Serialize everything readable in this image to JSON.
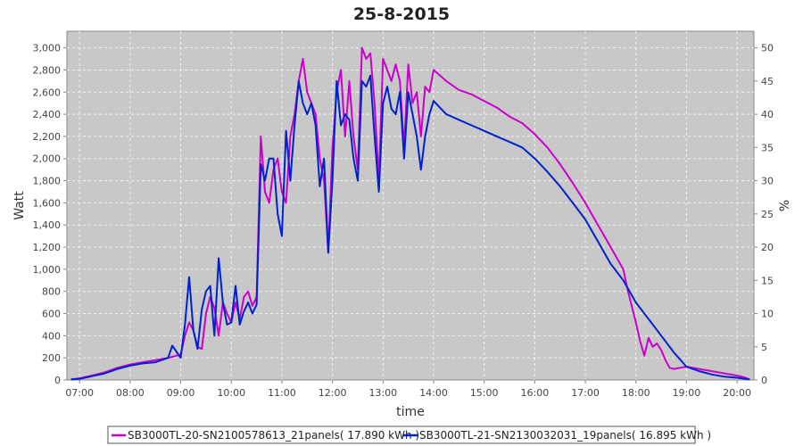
{
  "chart_data": {
    "type": "line",
    "title": "25-8-2015",
    "xlabel": "time",
    "ylabel": "Watt",
    "y2label": "%",
    "x_ticks": [
      "07:00",
      "08:00",
      "09:00",
      "10:00",
      "11:00",
      "12:00",
      "13:00",
      "14:00",
      "15:00",
      "16:00",
      "17:00",
      "18:00",
      "19:00",
      "20:00"
    ],
    "xlim": [
      "06:45",
      "20:20"
    ],
    "ylim": [
      0,
      3150
    ],
    "y_ticks": [
      0,
      200,
      400,
      600,
      800,
      1000,
      1200,
      1400,
      1600,
      1800,
      2000,
      2200,
      2400,
      2600,
      2800,
      3000
    ],
    "y_tick_labels": [
      "0",
      "200",
      "400",
      "600",
      "800",
      "1,000",
      "1,200",
      "1,400",
      "1,600",
      "1,800",
      "2,000",
      "2,200",
      "2,400",
      "2,600",
      "2,800",
      "3,000"
    ],
    "y2lim": [
      0,
      52.5
    ],
    "y2_ticks": [
      0,
      5,
      10,
      15,
      20,
      25,
      30,
      35,
      40,
      45,
      50
    ],
    "y2_tick_labels": [
      "0",
      "5",
      "10",
      "15",
      "20",
      "25",
      "30",
      "35",
      "40",
      "45",
      "50"
    ],
    "grid": true,
    "legend_position": "bottom",
    "series": [
      {
        "name": "SB3000TL-20-SN2100578613_21panels( 17.890 kWh )",
        "color": "#cc00cc",
        "points": [
          [
            "06:50",
            5
          ],
          [
            "07:00",
            15
          ],
          [
            "07:15",
            40
          ],
          [
            "07:30",
            70
          ],
          [
            "07:45",
            110
          ],
          [
            "08:00",
            140
          ],
          [
            "08:15",
            160
          ],
          [
            "08:30",
            180
          ],
          [
            "08:45",
            200
          ],
          [
            "09:00",
            230
          ],
          [
            "09:05",
            400
          ],
          [
            "09:10",
            520
          ],
          [
            "09:15",
            450
          ],
          [
            "09:20",
            300
          ],
          [
            "09:25",
            280
          ],
          [
            "09:30",
            600
          ],
          [
            "09:35",
            750
          ],
          [
            "09:40",
            650
          ],
          [
            "09:45",
            400
          ],
          [
            "09:50",
            700
          ],
          [
            "09:55",
            600
          ],
          [
            "10:00",
            520
          ],
          [
            "10:05",
            700
          ],
          [
            "10:10",
            550
          ],
          [
            "10:15",
            750
          ],
          [
            "10:20",
            800
          ],
          [
            "10:25",
            670
          ],
          [
            "10:30",
            750
          ],
          [
            "10:35",
            2200
          ],
          [
            "10:40",
            1700
          ],
          [
            "10:45",
            1600
          ],
          [
            "10:50",
            1900
          ],
          [
            "10:55",
            2000
          ],
          [
            "11:00",
            1700
          ],
          [
            "11:05",
            1600
          ],
          [
            "11:10",
            2200
          ],
          [
            "11:15",
            2400
          ],
          [
            "11:20",
            2700
          ],
          [
            "11:25",
            2900
          ],
          [
            "11:30",
            2600
          ],
          [
            "11:35",
            2500
          ],
          [
            "11:40",
            2400
          ],
          [
            "11:45",
            2000
          ],
          [
            "11:50",
            1800
          ],
          [
            "11:55",
            1150
          ],
          [
            "12:00",
            2100
          ],
          [
            "12:05",
            2600
          ],
          [
            "12:10",
            2800
          ],
          [
            "12:15",
            2200
          ],
          [
            "12:20",
            2700
          ],
          [
            "12:25",
            2200
          ],
          [
            "12:30",
            1900
          ],
          [
            "12:35",
            3000
          ],
          [
            "12:40",
            2900
          ],
          [
            "12:45",
            2950
          ],
          [
            "12:50",
            2500
          ],
          [
            "12:55",
            1800
          ],
          [
            "13:00",
            2900
          ],
          [
            "13:05",
            2800
          ],
          [
            "13:10",
            2700
          ],
          [
            "13:15",
            2850
          ],
          [
            "13:20",
            2700
          ],
          [
            "13:25",
            2100
          ],
          [
            "13:30",
            2850
          ],
          [
            "13:35",
            2500
          ],
          [
            "13:40",
            2600
          ],
          [
            "13:45",
            2200
          ],
          [
            "13:50",
            2650
          ],
          [
            "13:55",
            2600
          ],
          [
            "14:00",
            2800
          ],
          [
            "14:15",
            2700
          ],
          [
            "14:30",
            2620
          ],
          [
            "14:45",
            2580
          ],
          [
            "15:00",
            2520
          ],
          [
            "15:15",
            2460
          ],
          [
            "15:30",
            2380
          ],
          [
            "15:45",
            2320
          ],
          [
            "16:00",
            2220
          ],
          [
            "16:15",
            2100
          ],
          [
            "16:30",
            1950
          ],
          [
            "16:45",
            1780
          ],
          [
            "17:00",
            1600
          ],
          [
            "17:15",
            1400
          ],
          [
            "17:30",
            1200
          ],
          [
            "17:45",
            1000
          ],
          [
            "17:50",
            820
          ],
          [
            "18:00",
            520
          ],
          [
            "18:05",
            350
          ],
          [
            "18:10",
            220
          ],
          [
            "18:15",
            380
          ],
          [
            "18:20",
            300
          ],
          [
            "18:25",
            330
          ],
          [
            "18:30",
            270
          ],
          [
            "18:35",
            180
          ],
          [
            "18:40",
            110
          ],
          [
            "18:45",
            100
          ],
          [
            "19:00",
            120
          ],
          [
            "19:15",
            100
          ],
          [
            "19:30",
            80
          ],
          [
            "19:45",
            60
          ],
          [
            "20:00",
            40
          ],
          [
            "20:10",
            20
          ],
          [
            "20:15",
            5
          ]
        ]
      },
      {
        "name": "SB3000TL-21-SN2130032031_19panels( 16.895 kWh )",
        "color": "#0022cc",
        "points": [
          [
            "06:50",
            5
          ],
          [
            "07:00",
            10
          ],
          [
            "07:15",
            35
          ],
          [
            "07:30",
            60
          ],
          [
            "07:45",
            100
          ],
          [
            "08:00",
            130
          ],
          [
            "08:15",
            150
          ],
          [
            "08:30",
            160
          ],
          [
            "08:45",
            200
          ],
          [
            "08:50",
            310
          ],
          [
            "09:00",
            200
          ],
          [
            "09:05",
            500
          ],
          [
            "09:10",
            930
          ],
          [
            "09:15",
            450
          ],
          [
            "09:20",
            280
          ],
          [
            "09:25",
            640
          ],
          [
            "09:30",
            800
          ],
          [
            "09:35",
            850
          ],
          [
            "09:40",
            400
          ],
          [
            "09:45",
            1100
          ],
          [
            "09:50",
            700
          ],
          [
            "09:55",
            500
          ],
          [
            "10:00",
            520
          ],
          [
            "10:05",
            850
          ],
          [
            "10:10",
            500
          ],
          [
            "10:15",
            620
          ],
          [
            "10:20",
            700
          ],
          [
            "10:25",
            600
          ],
          [
            "10:30",
            680
          ],
          [
            "10:35",
            1950
          ],
          [
            "10:40",
            1800
          ],
          [
            "10:45",
            2000
          ],
          [
            "10:50",
            2000
          ],
          [
            "10:55",
            1500
          ],
          [
            "11:00",
            1300
          ],
          [
            "11:05",
            2250
          ],
          [
            "11:10",
            1800
          ],
          [
            "11:15",
            2300
          ],
          [
            "11:20",
            2700
          ],
          [
            "11:25",
            2500
          ],
          [
            "11:30",
            2400
          ],
          [
            "11:35",
            2500
          ],
          [
            "11:40",
            2300
          ],
          [
            "11:45",
            1750
          ],
          [
            "11:50",
            2000
          ],
          [
            "11:55",
            1150
          ],
          [
            "12:00",
            1800
          ],
          [
            "12:05",
            2700
          ],
          [
            "12:10",
            2300
          ],
          [
            "12:15",
            2400
          ],
          [
            "12:20",
            2350
          ],
          [
            "12:25",
            2000
          ],
          [
            "12:30",
            1800
          ],
          [
            "12:35",
            2700
          ],
          [
            "12:40",
            2650
          ],
          [
            "12:45",
            2750
          ],
          [
            "12:50",
            2200
          ],
          [
            "12:55",
            1700
          ],
          [
            "13:00",
            2500
          ],
          [
            "13:05",
            2650
          ],
          [
            "13:10",
            2450
          ],
          [
            "13:15",
            2400
          ],
          [
            "13:20",
            2600
          ],
          [
            "13:25",
            2000
          ],
          [
            "13:30",
            2600
          ],
          [
            "13:35",
            2400
          ],
          [
            "13:40",
            2200
          ],
          [
            "13:45",
            1900
          ],
          [
            "13:50",
            2200
          ],
          [
            "13:55",
            2400
          ],
          [
            "14:00",
            2520
          ],
          [
            "14:15",
            2400
          ],
          [
            "14:30",
            2350
          ],
          [
            "14:45",
            2300
          ],
          [
            "15:00",
            2250
          ],
          [
            "15:15",
            2200
          ],
          [
            "15:30",
            2150
          ],
          [
            "15:45",
            2100
          ],
          [
            "16:00",
            2000
          ],
          [
            "16:15",
            1880
          ],
          [
            "16:30",
            1750
          ],
          [
            "16:45",
            1600
          ],
          [
            "17:00",
            1450
          ],
          [
            "17:15",
            1250
          ],
          [
            "17:30",
            1050
          ],
          [
            "17:45",
            900
          ],
          [
            "18:00",
            700
          ],
          [
            "18:15",
            550
          ],
          [
            "18:30",
            400
          ],
          [
            "18:45",
            250
          ],
          [
            "19:00",
            120
          ],
          [
            "19:15",
            80
          ],
          [
            "19:30",
            50
          ],
          [
            "19:45",
            30
          ],
          [
            "20:00",
            20
          ],
          [
            "20:15",
            5
          ]
        ]
      }
    ]
  }
}
